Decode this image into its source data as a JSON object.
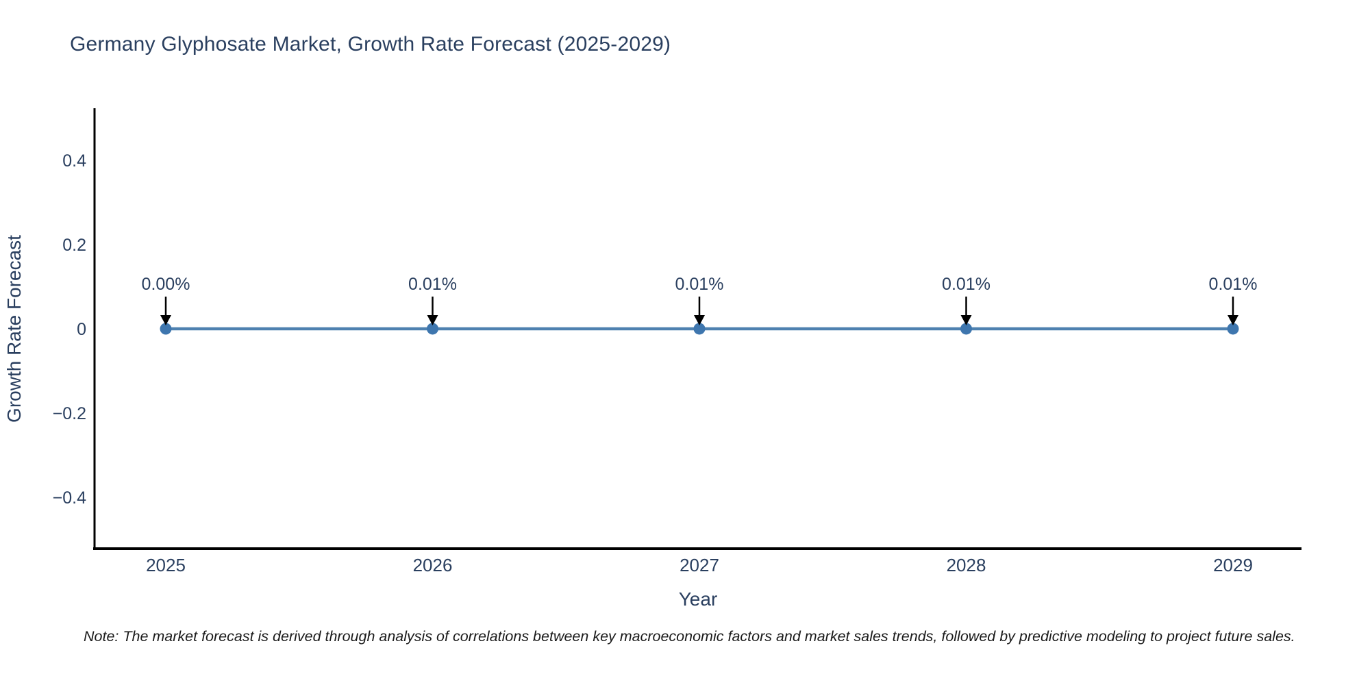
{
  "title": "Germany Glyphosate Market, Growth Rate Forecast (2025-2029)",
  "note": "Note: The market forecast is derived through analysis of correlations between key macroeconomic factors and market sales trends, followed by predictive modeling to project future sales.",
  "colors": {
    "title": "#2a3f5f",
    "tick_label": "#2a3f5f",
    "axis_line": "#000000",
    "series_line": "#4e81b0",
    "marker": "#3e76ae",
    "annotation_text": "#2a3f5f",
    "annotation_arrow": "#000000",
    "background": "#ffffff"
  },
  "chart_data": {
    "type": "line",
    "title": "Germany Glyphosate Market, Growth Rate Forecast (2025-2029)",
    "x": [
      2025,
      2026,
      2027,
      2028,
      2029
    ],
    "values": [
      0.0,
      0.0001,
      0.0001,
      0.0001,
      0.0001
    ],
    "point_labels": [
      "0.00%",
      "0.01%",
      "0.01%",
      "0.01%",
      "0.01%"
    ],
    "xtick_labels": [
      "2025",
      "2026",
      "2027",
      "2028",
      "2029"
    ],
    "yticks": [
      0.4,
      0.2,
      0,
      -0.2,
      -0.4
    ],
    "ytick_labels": [
      "0.4",
      "0.2",
      "0",
      "−0.2",
      "−0.4"
    ],
    "xlabel": "Year",
    "ylabel": "Growth Rate Forecast",
    "ylim": [
      -0.52,
      0.52
    ],
    "grid": false,
    "legend": "none",
    "markers": true,
    "annotations": "value labels with down arrows above each point"
  }
}
